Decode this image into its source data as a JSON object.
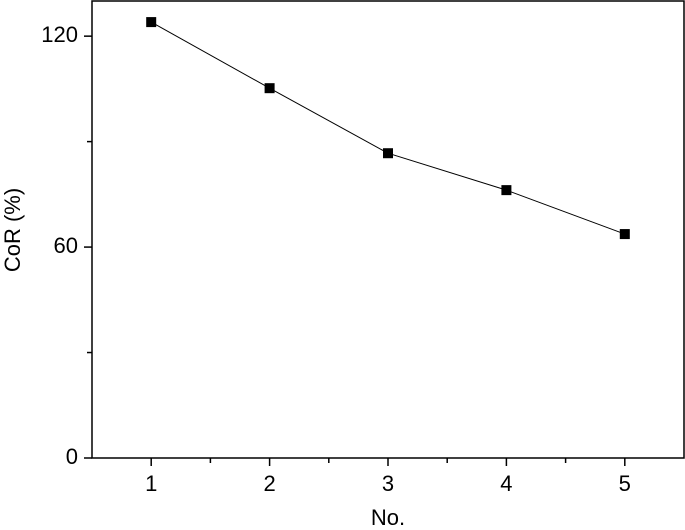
{
  "chart_data": {
    "type": "line",
    "x_label": "No.",
    "y_label": "CoR (%)",
    "x": [
      1,
      2,
      3,
      4,
      5
    ],
    "values": [
      124,
      105.2,
      86.7,
      76.2,
      63.7
    ],
    "color": "#000000",
    "xlim": [
      0.5,
      5.5
    ],
    "xticks": [
      1,
      2,
      3,
      4,
      5
    ],
    "xminorticks": [
      1.5,
      2.5,
      3.5,
      4.5
    ],
    "ylim": [
      0,
      130
    ],
    "yticks": [
      0,
      60,
      120
    ],
    "yminorticks": [
      30,
      90
    ]
  }
}
